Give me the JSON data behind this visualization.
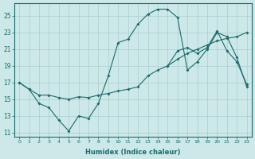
{
  "bg_color": "#cce8e8",
  "grid_color": "#aacece",
  "line_color": "#1a6b6b",
  "xlabel": "Humidex (Indice chaleur)",
  "xlim": [
    -0.5,
    23.5
  ],
  "ylim": [
    10.5,
    26.5
  ],
  "xticks": [
    0,
    1,
    2,
    3,
    4,
    5,
    6,
    7,
    8,
    9,
    10,
    11,
    12,
    13,
    14,
    15,
    16,
    17,
    18,
    19,
    20,
    21,
    22,
    23
  ],
  "yticks": [
    11,
    13,
    15,
    17,
    19,
    21,
    23,
    25
  ],
  "line1_x": [
    0,
    1,
    2,
    3,
    4,
    5,
    6,
    7,
    8,
    9,
    10,
    11,
    12,
    13,
    14,
    15,
    16,
    17,
    18,
    19,
    20,
    21,
    22,
    23
  ],
  "line1_y": [
    17.0,
    16.2,
    14.5,
    14.0,
    12.5,
    11.2,
    13.0,
    12.7,
    14.5,
    17.8,
    21.8,
    22.2,
    24.0,
    25.2,
    25.8,
    25.8,
    24.8,
    18.5,
    19.5,
    21.0,
    23.0,
    22.5,
    20.0,
    16.5
  ],
  "line2_x": [
    0,
    1,
    2,
    3,
    4,
    5,
    6,
    7,
    8,
    9,
    10,
    11,
    12,
    13,
    14,
    15,
    16,
    17,
    18,
    19,
    20,
    21,
    22,
    23
  ],
  "line2_y": [
    17.0,
    16.2,
    15.5,
    15.5,
    15.2,
    15.0,
    15.3,
    15.2,
    15.5,
    15.7,
    16.0,
    16.2,
    16.5,
    17.8,
    18.5,
    19.0,
    19.8,
    20.5,
    21.0,
    21.5,
    22.0,
    22.3,
    22.5,
    23.0
  ],
  "line3_x": [
    15,
    16,
    17,
    18,
    19,
    20,
    21,
    22,
    23
  ],
  "line3_y": [
    19.0,
    20.8,
    21.2,
    20.5,
    21.2,
    23.2,
    20.8,
    19.5,
    16.8
  ]
}
